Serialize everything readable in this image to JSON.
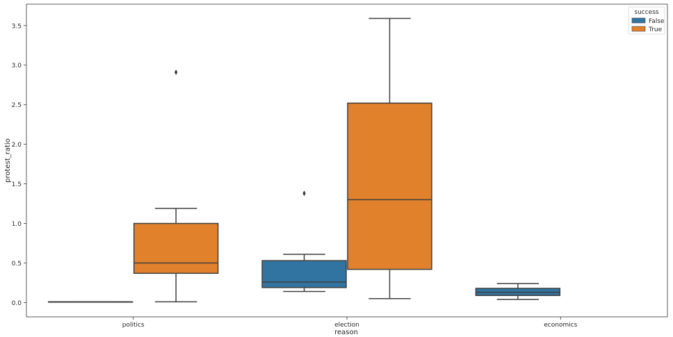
{
  "chart_data": {
    "type": "boxplot",
    "title": "",
    "xlabel": "reason",
    "ylabel": "protest_ratio",
    "categories": [
      "politics",
      "election",
      "economics"
    ],
    "ylim": [
      -0.18,
      3.77
    ],
    "yticks": [
      "0.0",
      "0.5",
      "1.0",
      "1.5",
      "2.0",
      "2.5",
      "3.0",
      "3.5"
    ],
    "legend": {
      "title": "success",
      "placement": "top-right"
    },
    "series": [
      {
        "name": "False",
        "color": "#3274a1",
        "boxes": [
          {
            "category": "politics",
            "whislo": 0.01,
            "q1": 0.01,
            "med": 0.01,
            "q3": 0.01,
            "whishi": 0.01,
            "fliers": []
          },
          {
            "category": "election",
            "whislo": 0.14,
            "q1": 0.19,
            "med": 0.26,
            "q3": 0.53,
            "whishi": 0.61,
            "fliers": [
              1.38
            ]
          },
          {
            "category": "economics",
            "whislo": 0.04,
            "q1": 0.09,
            "med": 0.13,
            "q3": 0.18,
            "whishi": 0.24,
            "fliers": []
          }
        ]
      },
      {
        "name": "True",
        "color": "#e1812c",
        "boxes": [
          {
            "category": "politics",
            "whislo": 0.01,
            "q1": 0.37,
            "med": 0.5,
            "q3": 1.0,
            "whishi": 1.19,
            "fliers": [
              2.91
            ]
          },
          {
            "category": "election",
            "whislo": 0.05,
            "q1": 0.42,
            "med": 1.3,
            "q3": 2.52,
            "whishi": 3.59,
            "fliers": []
          }
        ]
      }
    ]
  }
}
